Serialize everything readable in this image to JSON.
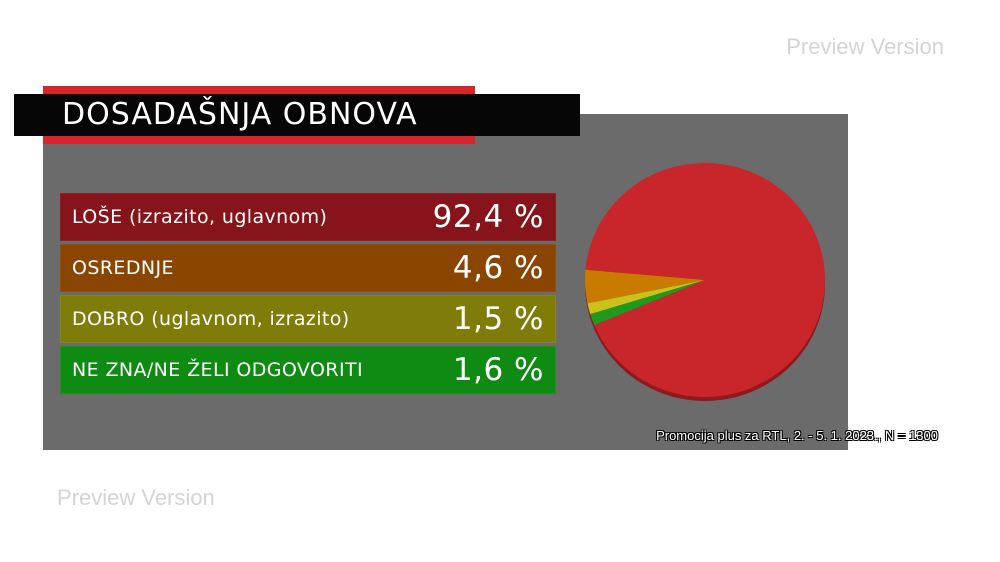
{
  "watermark": "Preview Version",
  "title": "DOSADAŠNJA OBNOVA",
  "source": "Promocija plus za RTL, 2. - 5. 1. 2023., N = 1300",
  "rows": [
    {
      "label": "LOŠE (izrazito, uglavnom)",
      "value": "92,4 %",
      "color": "#86141a"
    },
    {
      "label": "OSREDNJE",
      "value": "4,6 %",
      "color": "#8a4600"
    },
    {
      "label": "DOBRO (uglavnom, izrazito)",
      "value": "1,5 %",
      "color": "#7f7c0a"
    },
    {
      "label": "NE ZNA/NE ŽELI ODGOVORITI",
      "value": "1,6 %",
      "color": "#0f8a13"
    }
  ],
  "chart_data": {
    "type": "pie",
    "title": "DOSADAŠNJA OBNOVA",
    "categories": [
      "LOŠE (izrazito, uglavnom)",
      "OSREDNJE",
      "DOBRO (uglavnom, izrazito)",
      "NE ZNA/NE ŽELI ODGOVORITI"
    ],
    "values": [
      92.4,
      4.6,
      1.5,
      1.6
    ],
    "colors": [
      "#c8262a",
      "#c97b00",
      "#c9c21a",
      "#1f9a1f"
    ]
  }
}
